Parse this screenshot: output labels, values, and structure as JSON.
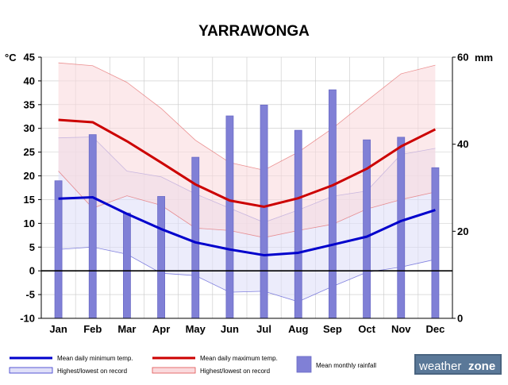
{
  "chart_data": {
    "type": "bar",
    "title": "YARRAWONGA",
    "categories": [
      "Jan",
      "Feb",
      "Mar",
      "Apr",
      "May",
      "Jun",
      "Jul",
      "Aug",
      "Sep",
      "Oct",
      "Nov",
      "Dec"
    ],
    "left_axis": {
      "unit": "°C",
      "ylim": [
        -10,
        45
      ],
      "ticks": [
        45,
        40,
        35,
        30,
        25,
        20,
        15,
        10,
        5,
        0,
        -5,
        -10
      ]
    },
    "right_axis": {
      "unit": "mm",
      "ylim": [
        0,
        60
      ],
      "ticks": [
        60,
        40,
        20,
        0
      ]
    },
    "series": [
      {
        "name": "Mean daily minimum temp.",
        "kind": "line",
        "axis": "left",
        "color": "#0000cc",
        "values": [
          15.2,
          15.5,
          12.0,
          8.8,
          6.0,
          4.5,
          3.3,
          3.8,
          5.5,
          7.2,
          10.5,
          12.8
        ]
      },
      {
        "name": "Mean daily maximum temp.",
        "kind": "line",
        "axis": "left",
        "color": "#cc0000",
        "values": [
          31.8,
          31.3,
          27.3,
          22.8,
          18.2,
          14.8,
          13.5,
          15.3,
          18.0,
          21.5,
          26.2,
          29.8
        ]
      },
      {
        "name": "Highest/lowest on record",
        "kind": "band",
        "axis": "left",
        "color": "#3333cc",
        "fill": "#e0e0f8",
        "upper": [
          28.0,
          28.2,
          21.0,
          19.8,
          16.2,
          13.2,
          10.2,
          12.8,
          15.7,
          16.8,
          24.5,
          25.8
        ],
        "lower": [
          4.5,
          5.0,
          3.5,
          -0.5,
          -1.0,
          -4.5,
          -4.3,
          -6.5,
          -3.3,
          -0.3,
          0.8,
          2.4
        ]
      },
      {
        "name": "Highest/lowest on record",
        "kind": "band",
        "axis": "left",
        "color": "#e05050",
        "fill": "#fadadd",
        "upper": [
          43.8,
          43.2,
          39.7,
          34.2,
          27.5,
          22.8,
          21.2,
          25.0,
          30.0,
          35.8,
          41.5,
          43.3
        ],
        "lower": [
          21.0,
          13.2,
          15.8,
          13.8,
          9.0,
          8.5,
          7.0,
          8.5,
          9.8,
          13.0,
          15.0,
          16.6
        ]
      },
      {
        "name": "Mean monthly rainfall",
        "kind": "bar",
        "axis": "right",
        "color": "#8080d6",
        "edge": "#6a6ac6",
        "values": [
          31.6,
          42.2,
          24.2,
          28.0,
          37.0,
          46.5,
          49.0,
          43.2,
          52.5,
          41.0,
          41.6,
          34.6
        ]
      }
    ],
    "legend_position": "bottom",
    "grid": true
  },
  "legend": {
    "min": "Mean daily minimum temp.",
    "max": "Mean daily maximum temp.",
    "record_blue": "Highest/lowest on record",
    "record_red": "Highest/lowest on record",
    "rain": "Mean monthly rainfall"
  },
  "logo": {
    "part1": "weather",
    "part2": "zone",
    "bg": "#4a6480"
  }
}
